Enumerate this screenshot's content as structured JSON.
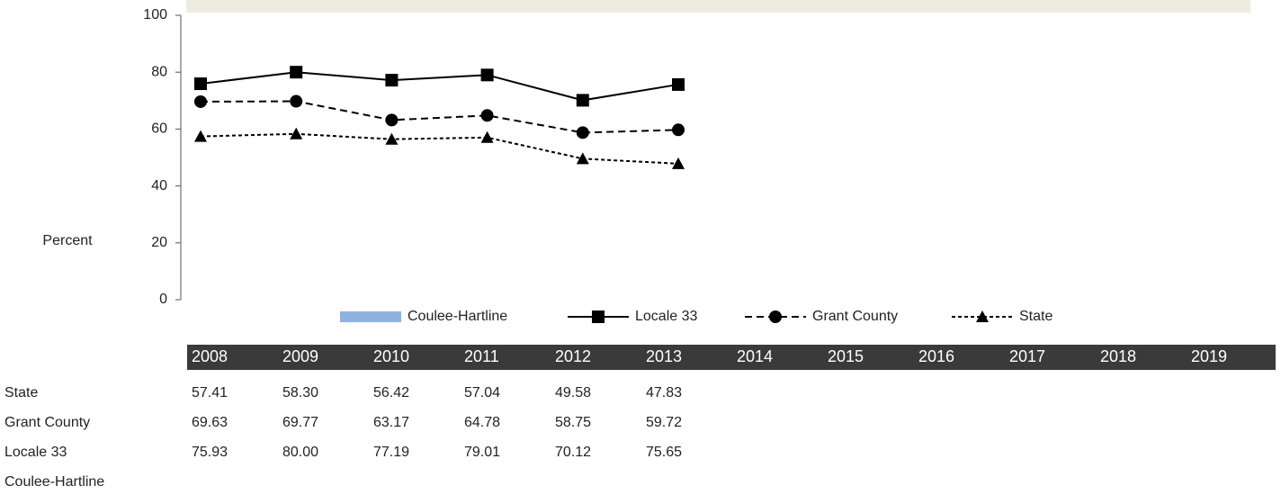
{
  "chart_data": {
    "type": "line",
    "y_label": "Percent",
    "categories": [
      "2008",
      "2009",
      "2010",
      "2011",
      "2012",
      "2013",
      "2014",
      "2015",
      "2016",
      "2017",
      "2018",
      "2019"
    ],
    "ylim": [
      0,
      100
    ],
    "yticks": [
      0,
      20,
      40,
      60,
      80,
      100
    ],
    "legend": "bottom",
    "series": [
      {
        "name": "Coulee-Hartline",
        "color": "#8db3e2",
        "kind": "bar",
        "values": [
          null,
          null,
          null,
          null,
          null,
          null,
          null,
          null,
          null,
          null,
          null,
          null
        ]
      },
      {
        "name": "Locale 33",
        "color": "#000000",
        "style": "solid",
        "marker": "square",
        "values": [
          75.93,
          80,
          77.19,
          79.01,
          70.12,
          75.65,
          null,
          null,
          null,
          null,
          null,
          null
        ],
        "value_labels": [
          "75.93",
          "80.00",
          "77.19",
          "79.01",
          "70.12",
          "75.65",
          null,
          null,
          null,
          null,
          null,
          null
        ]
      },
      {
        "name": "Grant County",
        "color": "#000000",
        "style": "dashed",
        "marker": "circle",
        "values": [
          69.63,
          69.77,
          63.17,
          64.78,
          58.75,
          59.72,
          null,
          null,
          null,
          null,
          null,
          null
        ],
        "value_labels": [
          "69.63",
          "69.77",
          "63.17",
          "64.78",
          "58.75",
          "59.72",
          null,
          null,
          null,
          null,
          null,
          null
        ]
      },
      {
        "name": "State",
        "color": "#000000",
        "style": "dotted",
        "marker": "triangle",
        "values": [
          57.41,
          58.3,
          56.42,
          57.04,
          49.58,
          47.83,
          null,
          null,
          null,
          null,
          null,
          null
        ],
        "value_labels": [
          "57.41",
          "58.30",
          "56.42",
          "57.04",
          "49.58",
          "47.83",
          null,
          null,
          null,
          null,
          null,
          null
        ]
      }
    ]
  }
}
